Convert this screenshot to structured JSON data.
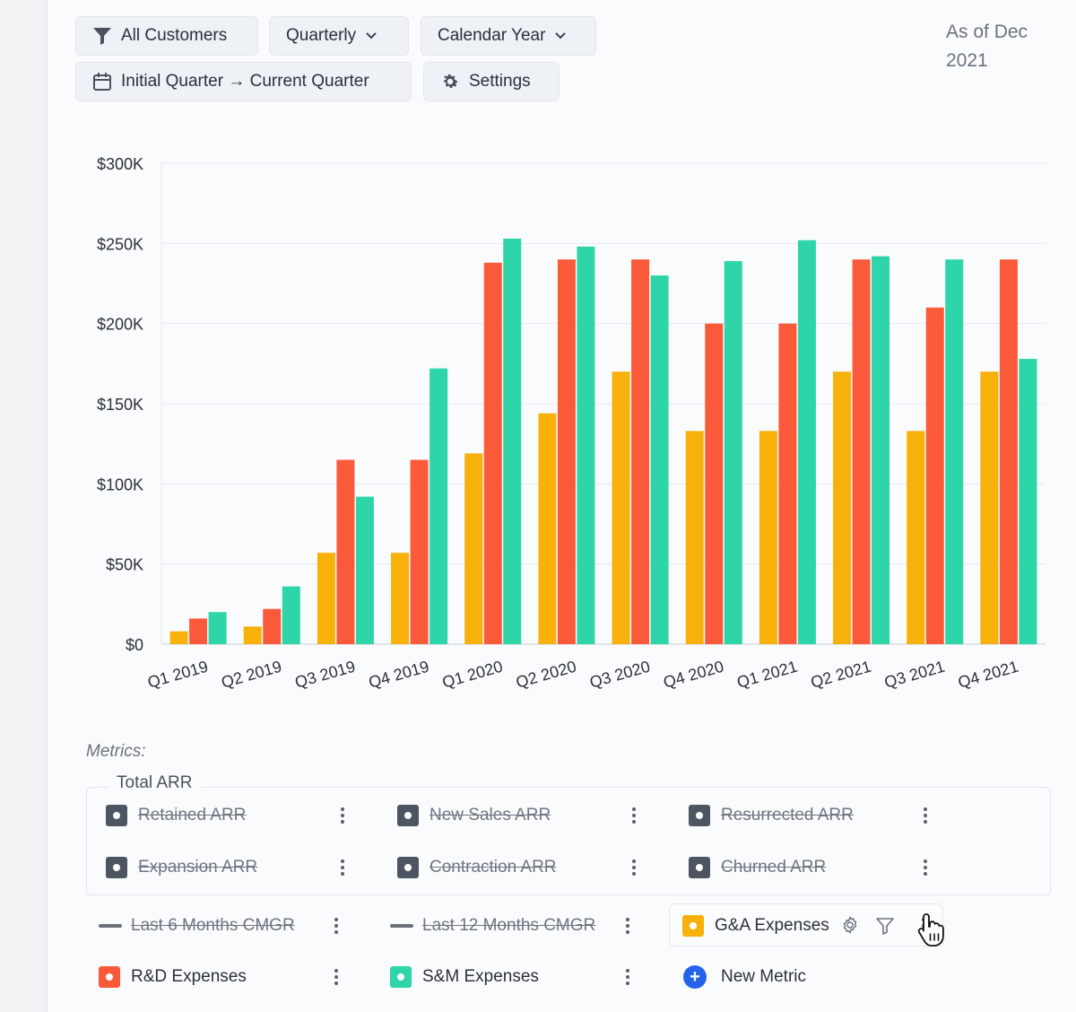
{
  "toolbar": {
    "customers_label": "All Customers",
    "period_label": "Quarterly",
    "year_label": "Calendar Year",
    "range_label": "Initial Quarter → Current Quarter",
    "settings_label": "Settings"
  },
  "as_of": "As of Dec 2021",
  "chart_data": {
    "type": "bar",
    "title": "",
    "xlabel": "",
    "ylabel": "",
    "ylim": [
      0,
      300000
    ],
    "yticks": [
      {
        "value": 0,
        "label": "$0"
      },
      {
        "value": 50000,
        "label": "$50K"
      },
      {
        "value": 100000,
        "label": "$100K"
      },
      {
        "value": 150000,
        "label": "$150K"
      },
      {
        "value": 200000,
        "label": "$200K"
      },
      {
        "value": 250000,
        "label": "$250K"
      },
      {
        "value": 300000,
        "label": "$300K"
      }
    ],
    "categories": [
      "Q1 2019",
      "Q2 2019",
      "Q3 2019",
      "Q4 2019",
      "Q1 2020",
      "Q2 2020",
      "Q3 2020",
      "Q4 2020",
      "Q1 2021",
      "Q2 2021",
      "Q3 2021",
      "Q4 2021"
    ],
    "series": [
      {
        "name": "G&A Expenses",
        "color": "#f8b00a",
        "values": [
          8000,
          11000,
          57000,
          57000,
          119000,
          144000,
          170000,
          133000,
          133000,
          170000,
          133000,
          170000
        ]
      },
      {
        "name": "R&D Expenses",
        "color": "#fb5a3a",
        "values": [
          16000,
          22000,
          115000,
          115000,
          238000,
          240000,
          240000,
          200000,
          200000,
          240000,
          210000,
          240000
        ]
      },
      {
        "name": "S&M Expenses",
        "color": "#2dd5a9",
        "values": [
          20000,
          36000,
          92000,
          172000,
          253000,
          248000,
          230000,
          239000,
          252000,
          242000,
          240000,
          178000
        ]
      }
    ],
    "grid": true
  },
  "metrics": {
    "label": "Metrics:",
    "group_title": "Total ARR",
    "group_items": [
      {
        "label": "Retained ARR",
        "color": "#4d5563"
      },
      {
        "label": "New Sales ARR",
        "color": "#4d5563"
      },
      {
        "label": "Resurrected ARR",
        "color": "#4d5563"
      },
      {
        "label": "Expansion ARR",
        "color": "#4d5563"
      },
      {
        "label": "Contraction ARR",
        "color": "#4d5563"
      },
      {
        "label": "Churned ARR",
        "color": "#4d5563"
      }
    ],
    "cmgr_6": "Last 6 Months CMGR",
    "cmgr_12": "Last 12 Months CMGR",
    "ga": "G&A Expenses",
    "rd": "R&D Expenses",
    "sm": "S&M Expenses",
    "new_metric": "New Metric"
  }
}
